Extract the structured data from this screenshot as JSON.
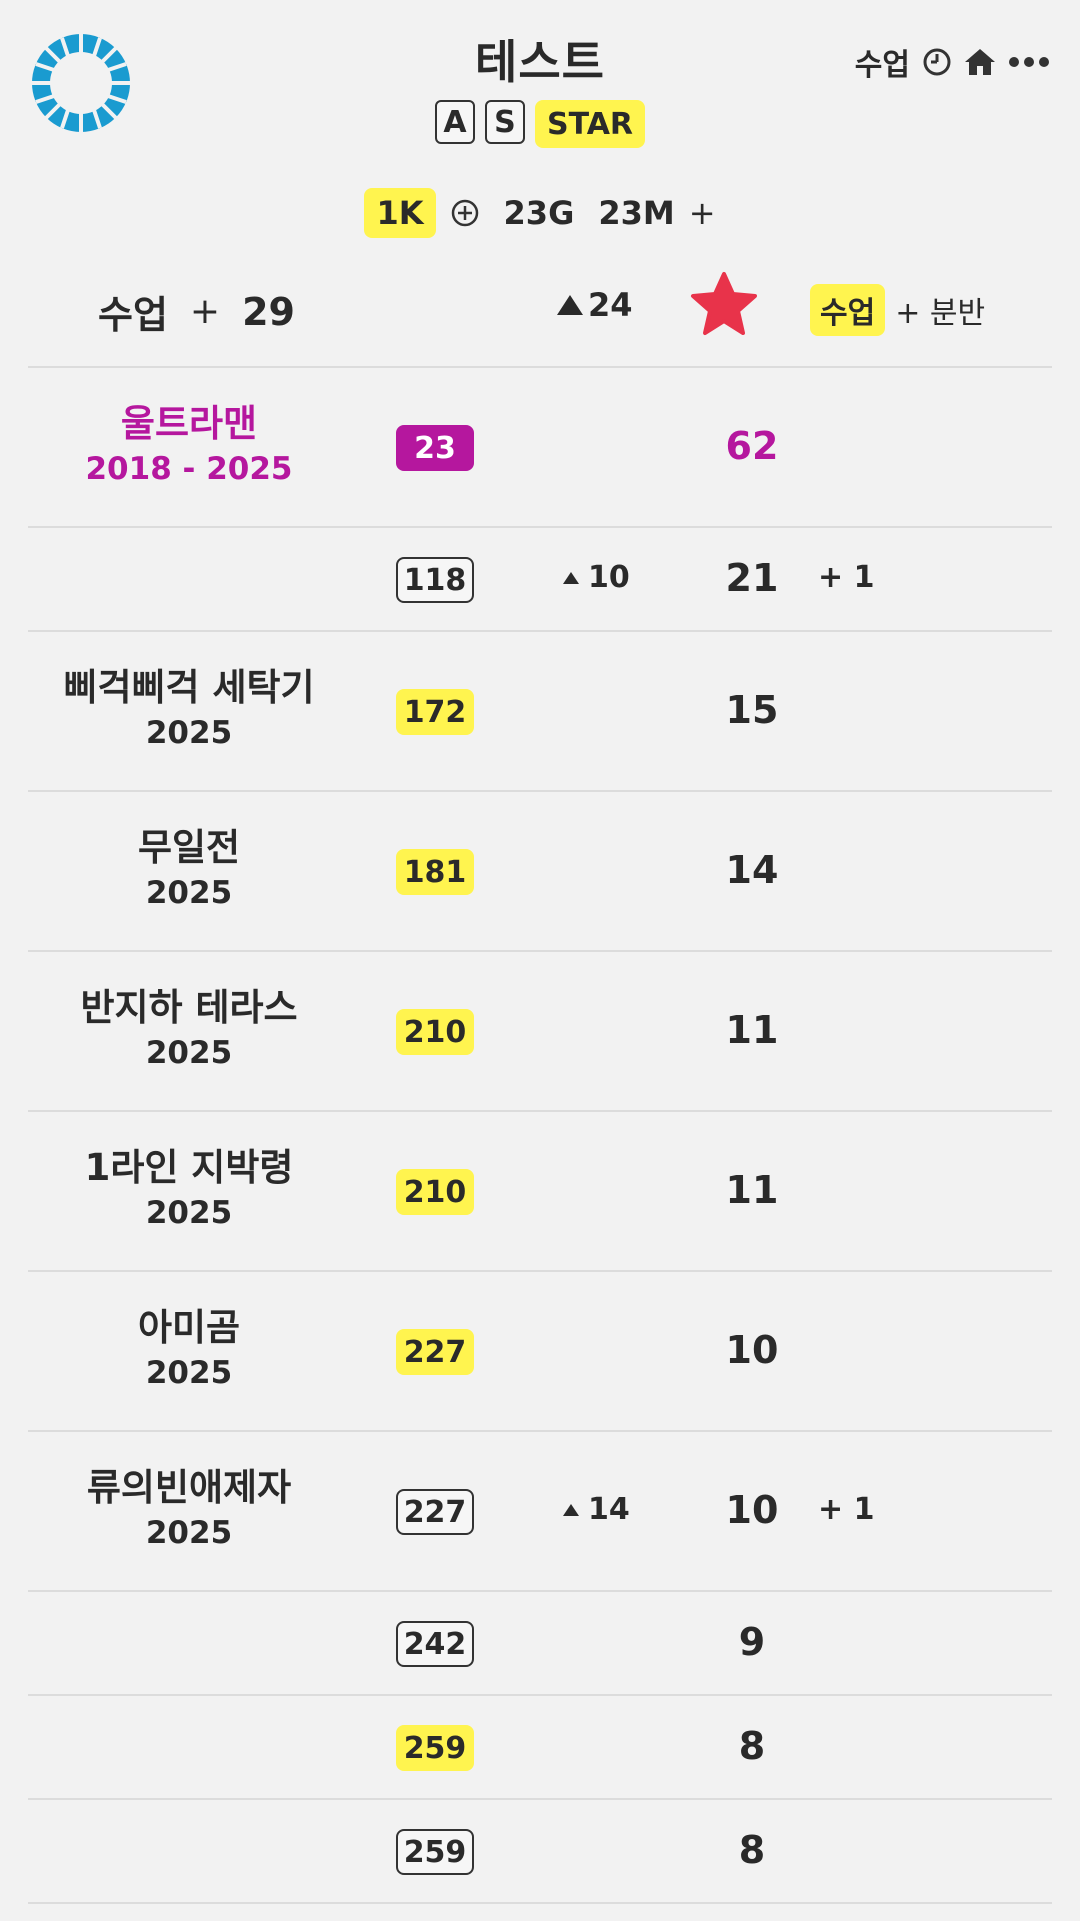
{
  "header": {
    "title": "테스트",
    "badges": [
      "A",
      "S"
    ],
    "star_badge": "STAR",
    "right_label": "수업",
    "icons": [
      "clock-icon",
      "home-icon",
      "more-icon"
    ]
  },
  "counts": {
    "k": "1K",
    "g": "23G",
    "m": "23M",
    "plus": "+"
  },
  "columns": {
    "left_label": "수업",
    "left_plus": "+",
    "left_value": "29",
    "rank_delta": "24",
    "right_highlight": "수업",
    "right_text": "+ 분반"
  },
  "rows": [
    {
      "name": "울트라맨",
      "year": "2018 - 2025",
      "rank": "23",
      "delta": "",
      "score": "62",
      "extra": ""
    },
    {
      "name": "",
      "year": "",
      "rank": "118",
      "delta": "10",
      "score": "21",
      "extra": "+ 1"
    },
    {
      "name": "삐걱삐걱 세탁기",
      "year": "2025",
      "rank": "172",
      "delta": "",
      "score": "15",
      "extra": ""
    },
    {
      "name": "무일전",
      "year": "2025",
      "rank": "181",
      "delta": "",
      "score": "14",
      "extra": ""
    },
    {
      "name": "반지하 테라스",
      "year": "2025",
      "rank": "210",
      "delta": "",
      "score": "11",
      "extra": ""
    },
    {
      "name": "1라인 지박령",
      "year": "2025",
      "rank": "210",
      "delta": "",
      "score": "11",
      "extra": ""
    },
    {
      "name": "아미곰",
      "year": "2025",
      "rank": "227",
      "delta": "",
      "score": "10",
      "extra": ""
    },
    {
      "name": "류의빈애제자",
      "year": "2025",
      "rank": "227",
      "delta": "14",
      "score": "10",
      "extra": "+ 1"
    },
    {
      "name": "",
      "year": "",
      "rank": "242",
      "delta": "",
      "score": "9",
      "extra": ""
    },
    {
      "name": "",
      "year": "",
      "rank": "259",
      "delta": "",
      "score": "8",
      "extra": ""
    },
    {
      "name": "",
      "year": "",
      "rank": "259",
      "delta": "",
      "score": "8",
      "extra": ""
    }
  ],
  "colors": {
    "yellow": "#fff44f",
    "magenta": "#b5179e",
    "star": "#e8334a",
    "logo": "#1a9bd0"
  }
}
